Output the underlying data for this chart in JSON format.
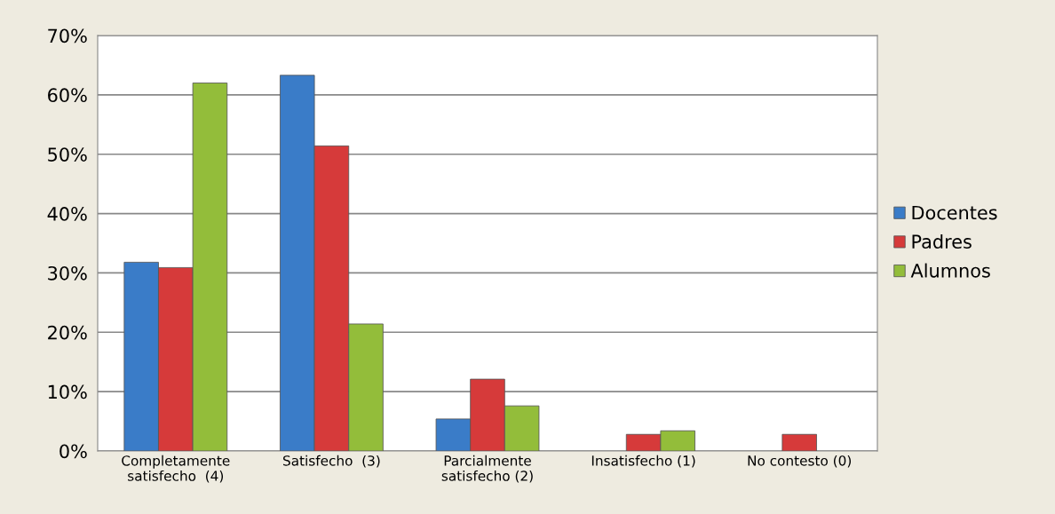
{
  "chart_data": {
    "type": "bar",
    "categories": [
      "Completamente\nsatisfecho  (4)",
      "Satisfecho  (3)",
      "Parcialmente\nsatisfecho (2)",
      "Insatisfecho (1)",
      "No contesto (0)"
    ],
    "series": [
      {
        "name": "Docentes",
        "color": "#3a7cc8",
        "values": [
          31.8,
          63.3,
          5.4,
          null,
          null
        ]
      },
      {
        "name": "Padres",
        "color": "#d63a3a",
        "values": [
          30.9,
          51.4,
          12.1,
          2.8,
          2.8
        ]
      },
      {
        "name": "Alumnos",
        "color": "#93bd3a",
        "values": [
          62.0,
          21.4,
          7.6,
          3.4,
          null
        ]
      }
    ],
    "ylim": [
      0,
      70
    ],
    "yticks": [
      {
        "value": 0,
        "label": "0%"
      },
      {
        "value": 10,
        "label": "10%"
      },
      {
        "value": 20,
        "label": "20%"
      },
      {
        "value": 30,
        "label": "30%"
      },
      {
        "value": 40,
        "label": "40%"
      },
      {
        "value": 50,
        "label": "50%"
      },
      {
        "value": 60,
        "label": "60%"
      },
      {
        "value": 70,
        "label": "70%"
      }
    ],
    "grid": "y",
    "legend": "right"
  }
}
